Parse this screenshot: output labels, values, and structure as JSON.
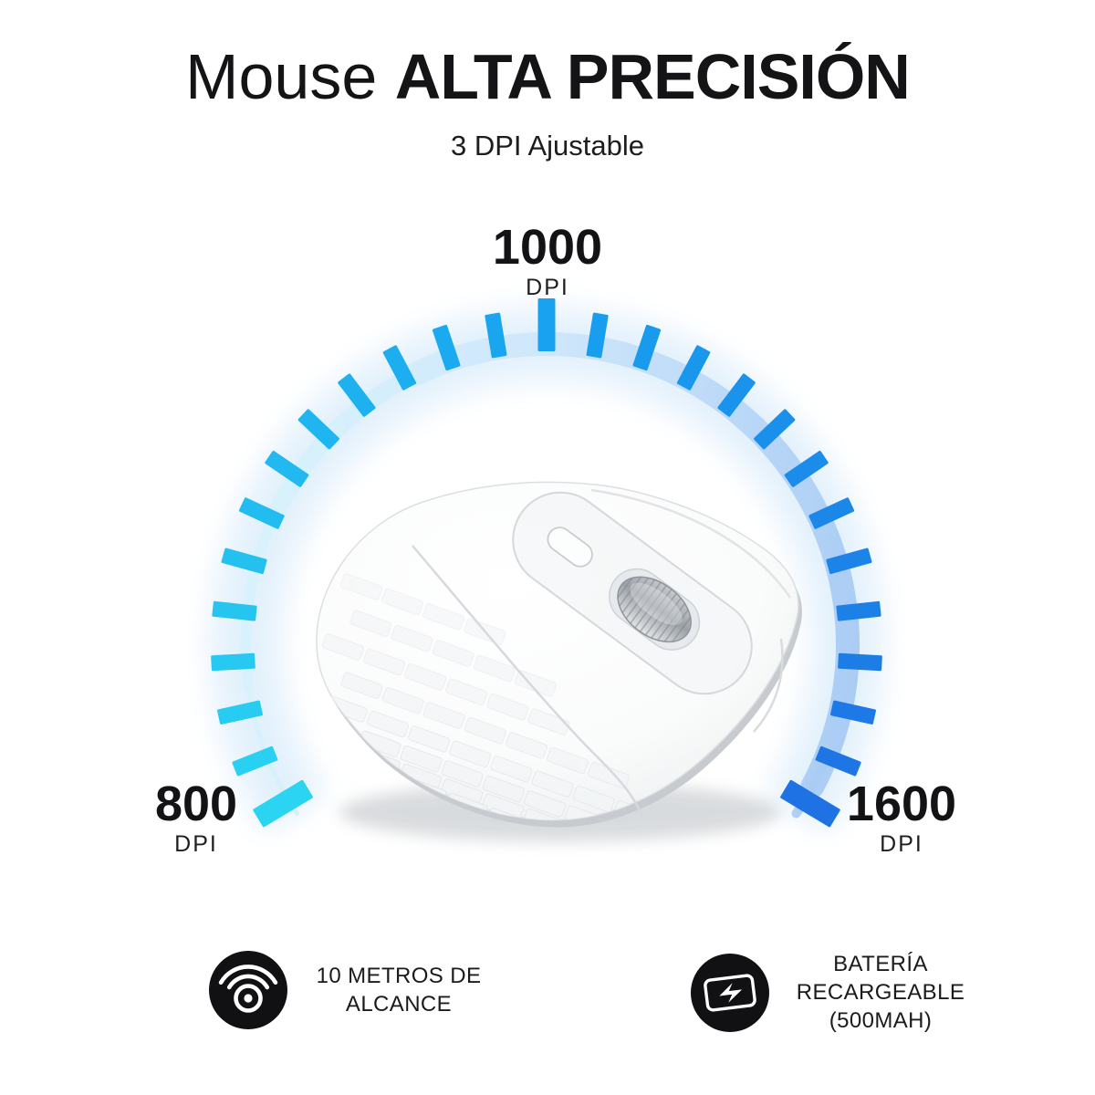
{
  "page": {
    "background": "#ffffff"
  },
  "header": {
    "title_regular": "Mouse",
    "title_emphasis": "ALTA PRECISIÓN",
    "subtitle": "3 DPI Ajustable"
  },
  "gauge": {
    "labels": {
      "top": {
        "value": "1000",
        "unit": "DPI"
      },
      "left": {
        "value": "800",
        "unit": "DPI"
      },
      "right": {
        "value": "1600",
        "unit": "DPI"
      }
    },
    "ticks": {
      "count": 27,
      "angle_start": -121,
      "angle_end": 121,
      "color_start": "#2BD4F1",
      "color_mid": "#18A2EF",
      "color_end": "#1E72E4",
      "band_gradient": [
        "#D9F4FD",
        "#CDE6FA",
        "#A7CAF4"
      ],
      "glow_color": "#DAEDFB"
    }
  },
  "features": [
    {
      "icon": "wireless-signal-icon",
      "lines": [
        "10 METROS DE",
        "ALCANCE"
      ]
    },
    {
      "icon": "battery-charging-icon",
      "lines": [
        "BATERÍA",
        "RECARGEABLE",
        "(500MAH)"
      ]
    }
  ]
}
